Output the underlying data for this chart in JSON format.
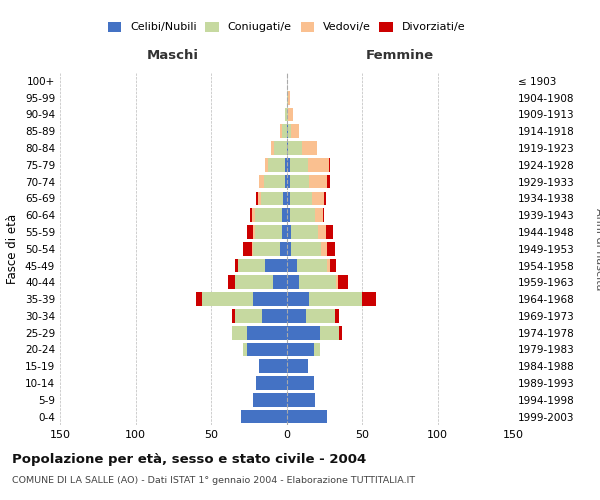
{
  "age_groups": [
    "0-4",
    "5-9",
    "10-14",
    "15-19",
    "20-24",
    "25-29",
    "30-34",
    "35-39",
    "40-44",
    "45-49",
    "50-54",
    "55-59",
    "60-64",
    "65-69",
    "70-74",
    "75-79",
    "80-84",
    "85-89",
    "90-94",
    "95-99",
    "100+"
  ],
  "birth_years": [
    "1999-2003",
    "1994-1998",
    "1989-1993",
    "1984-1988",
    "1979-1983",
    "1974-1978",
    "1969-1973",
    "1964-1968",
    "1959-1963",
    "1954-1958",
    "1949-1953",
    "1944-1948",
    "1939-1943",
    "1934-1938",
    "1929-1933",
    "1924-1928",
    "1919-1923",
    "1914-1918",
    "1909-1913",
    "1904-1908",
    "≤ 1903"
  ],
  "males": {
    "celibi": [
      30,
      22,
      20,
      18,
      26,
      26,
      16,
      22,
      9,
      14,
      4,
      3,
      3,
      2,
      1,
      1,
      0,
      0,
      0,
      0,
      0
    ],
    "coniugati": [
      0,
      0,
      0,
      0,
      3,
      10,
      18,
      34,
      25,
      18,
      18,
      18,
      18,
      15,
      14,
      11,
      8,
      3,
      1,
      0,
      0
    ],
    "vedovi": [
      0,
      0,
      0,
      0,
      0,
      0,
      0,
      0,
      0,
      0,
      1,
      1,
      2,
      2,
      3,
      2,
      2,
      1,
      0,
      0,
      0
    ],
    "divorziati": [
      0,
      0,
      0,
      0,
      0,
      0,
      2,
      4,
      5,
      2,
      6,
      4,
      1,
      1,
      0,
      0,
      0,
      0,
      0,
      0,
      0
    ]
  },
  "females": {
    "nubili": [
      27,
      19,
      18,
      14,
      18,
      22,
      13,
      15,
      8,
      7,
      3,
      3,
      2,
      2,
      2,
      2,
      1,
      1,
      0,
      0,
      0
    ],
    "coniugate": [
      0,
      0,
      0,
      0,
      4,
      13,
      19,
      35,
      25,
      20,
      20,
      18,
      17,
      15,
      13,
      12,
      9,
      2,
      1,
      1,
      0
    ],
    "vedove": [
      0,
      0,
      0,
      0,
      0,
      0,
      0,
      0,
      1,
      2,
      4,
      5,
      5,
      8,
      12,
      14,
      10,
      5,
      3,
      1,
      0
    ],
    "divorziate": [
      0,
      0,
      0,
      0,
      0,
      2,
      3,
      9,
      7,
      4,
      5,
      5,
      1,
      1,
      2,
      1,
      0,
      0,
      0,
      0,
      0
    ]
  },
  "colors": {
    "celibi_nubili": "#4472C4",
    "coniugati": "#C6D9A0",
    "vedovi": "#FAC090",
    "divorziati": "#CC0000"
  },
  "xlim": 150,
  "title": "Popolazione per età, sesso e stato civile - 2004",
  "subtitle": "COMUNE DI LA SALLE (AO) - Dati ISTAT 1° gennaio 2004 - Elaborazione TUTTITALIA.IT",
  "ylabel": "Fasce di età",
  "right_ylabel": "Anni di nascita",
  "legend_labels": [
    "Celibi/Nubili",
    "Coniugati/e",
    "Vedovi/e",
    "Divorziati/e"
  ],
  "maschi_label": "Maschi",
  "femmine_label": "Femmine"
}
